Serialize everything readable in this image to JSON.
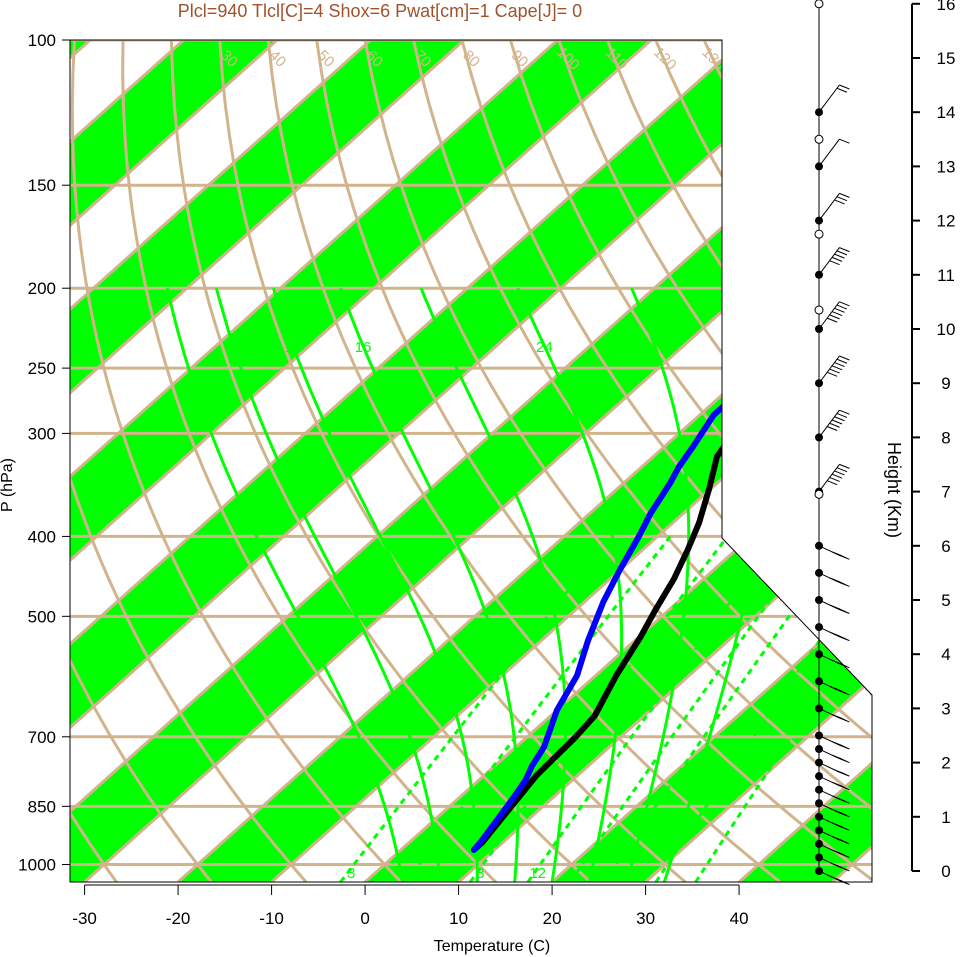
{
  "chart_data": {
    "type": "line",
    "chart_kind": "skew-T log-P thermodynamic diagram",
    "title": "Plcl=940 Tlcl[C]=4 Shox=6 Pwat[cm]=1 Cape[J]= 0",
    "xlabel": "Temperature (C)",
    "ylabel": "P (hPa)",
    "y2label": "Height (Km)",
    "xlim": [
      -34,
      46
    ],
    "ylim": [
      1050,
      100
    ],
    "y_scale": "log",
    "x_ticks": [
      "-30",
      "-20",
      "-10",
      "0",
      "10",
      "20",
      "30",
      "40"
    ],
    "x_tick_values": [
      -30,
      -20,
      -10,
      0,
      10,
      20,
      30,
      40
    ],
    "y_ticks": [
      "100",
      "150",
      "200",
      "250",
      "300",
      "400",
      "500",
      "700",
      "850",
      "1000"
    ],
    "y_tick_values": [
      100,
      150,
      200,
      250,
      300,
      400,
      500,
      700,
      850,
      1000
    ],
    "height_ticks": [
      "0",
      "1",
      "2",
      "3",
      "4",
      "5",
      "6",
      "7",
      "8",
      "9",
      "10",
      "11",
      "12",
      "13",
      "14",
      "15",
      "16"
    ],
    "grid": true,
    "series": [
      {
        "role": "temperature",
        "color": "#000000",
        "points": [
          [
            7.8,
            960
          ],
          [
            7.8,
            940
          ],
          [
            5.6,
            780
          ],
          [
            5.2,
            700
          ],
          [
            4.7,
            660
          ],
          [
            2.2,
            590
          ],
          [
            0.2,
            530
          ],
          [
            -1.5,
            490
          ],
          [
            -3.2,
            450
          ],
          [
            -5.2,
            415
          ],
          [
            -7.2,
            385
          ],
          [
            -10.2,
            350
          ],
          [
            -13.2,
            320
          ],
          [
            -14.2,
            300
          ],
          [
            -15.2,
            285
          ],
          [
            -14.2,
            262
          ],
          [
            -9.2,
            236
          ],
          [
            -4.2,
            216
          ],
          [
            1.8,
            196
          ],
          [
            4.8,
            184
          ],
          [
            8.8,
            169
          ],
          [
            11.3,
            155
          ],
          [
            12.8,
            140
          ],
          [
            13.6,
            125
          ],
          [
            16.5,
            115
          ],
          [
            19.8,
            108
          ]
        ]
      },
      {
        "role": "dewpoint",
        "color": "#0000ff",
        "points": [
          [
            7.8,
            960
          ],
          [
            7.6,
            940
          ],
          [
            5.8,
            830
          ],
          [
            5.0,
            790
          ],
          [
            4.0,
            760
          ],
          [
            3.0,
            720
          ],
          [
            0.0,
            650
          ],
          [
            -2.0,
            590
          ],
          [
            -5.0,
            535
          ],
          [
            -8.0,
            480
          ],
          [
            -10.0,
            440
          ],
          [
            -12.0,
            400
          ],
          [
            -13.5,
            375
          ],
          [
            -14.5,
            355
          ],
          [
            -15.0,
            345
          ],
          [
            -16.0,
            330
          ],
          [
            -17.0,
            310
          ],
          [
            -18.5,
            285
          ],
          [
            -18.5,
            265
          ],
          [
            -19.0,
            250
          ],
          [
            -20.0,
            234
          ],
          [
            -24.0,
            222
          ],
          [
            -25.0,
            213
          ],
          [
            -27.0,
            200
          ],
          [
            -7.0,
            107
          ]
        ]
      }
    ],
    "isotherm_labels": [
      "-40",
      "-30",
      "-20",
      "-10",
      "0",
      "10",
      "20",
      "30"
    ],
    "dry_adiabat_labels": [
      "30",
      "40",
      "50",
      "60",
      "70",
      "80",
      "90",
      "100",
      "110",
      "120",
      "130",
      "140",
      "150",
      "160"
    ],
    "moist_adiabat_labels": [
      "12",
      "16",
      "24",
      "32"
    ],
    "mixing_ratio_labels": [
      "3",
      "8",
      "12"
    ],
    "colors": {
      "band": "#00ff00",
      "grid": "#d2b48c",
      "moist": "#00ff00",
      "title": "#a0522d",
      "temperature": "#000000",
      "dewpoint": "#0000ff"
    },
    "wind_profile": {
      "levels_km": [
        0,
        0.25,
        0.5,
        0.75,
        1.0,
        1.25,
        1.5,
        1.75,
        2.0,
        2.25,
        2.5,
        3.0,
        3.5,
        4.0,
        4.5,
        5.0,
        5.5,
        6.0,
        7.0,
        8.0,
        9.0,
        10.0,
        11.0,
        12.0,
        13.0,
        14.0
      ],
      "speeds_kt": [
        40,
        40,
        40,
        35,
        35,
        40,
        35,
        35,
        30,
        35,
        40,
        35,
        45,
        40,
        50,
        45,
        50,
        40,
        55,
        55,
        60,
        60,
        50,
        30,
        10,
        15
      ]
    }
  }
}
